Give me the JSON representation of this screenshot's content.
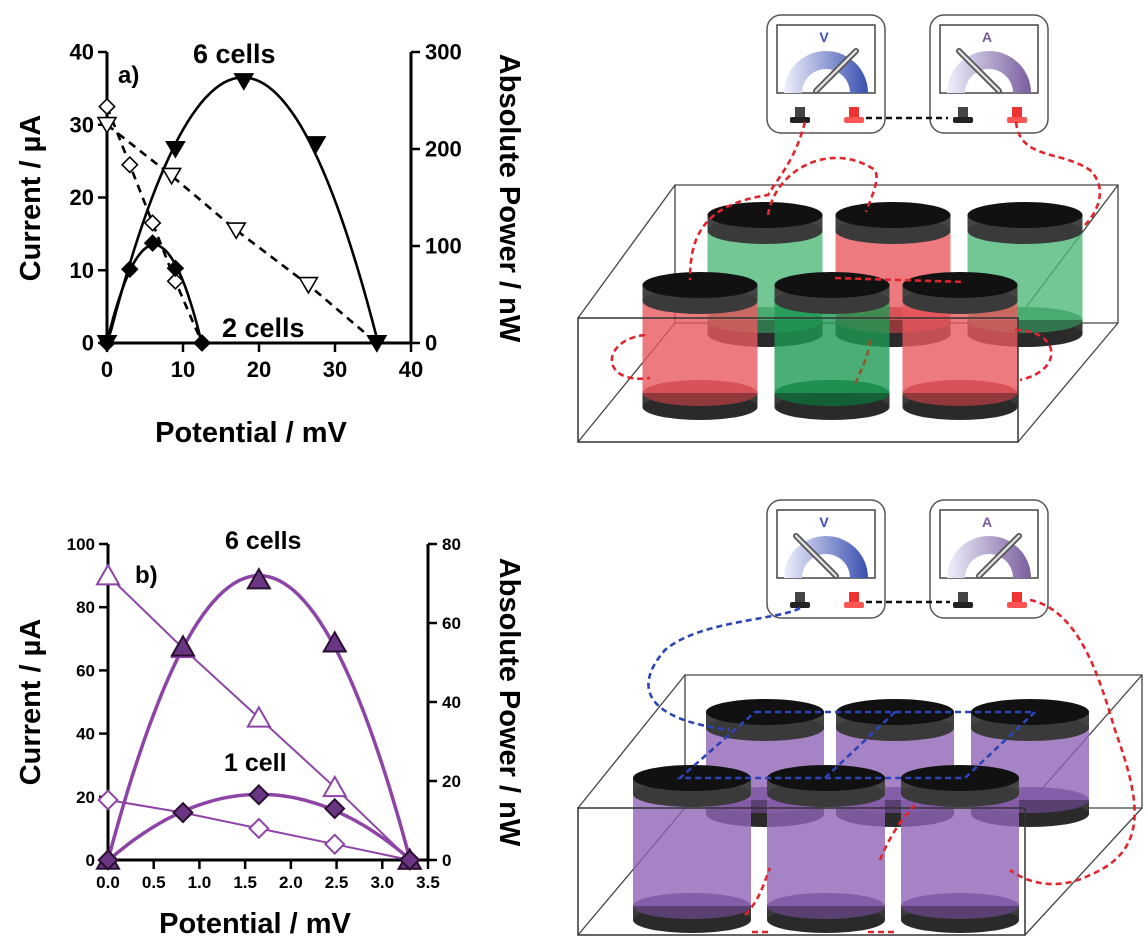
{
  "chart_data": [
    {
      "type": "scatter",
      "panel_label": "a)",
      "xlabel": "Potential / mV",
      "ylabel": "Current / µA",
      "y2label": "Absolute Power / nW",
      "xlim": [
        0,
        40
      ],
      "ylim": [
        0,
        40
      ],
      "y2lim": [
        0,
        300
      ],
      "xticks": [
        "0",
        "10",
        "20",
        "30",
        "40"
      ],
      "yticks": [
        "0",
        "10",
        "20",
        "30",
        "40"
      ],
      "y2ticks": [
        "0",
        "100",
        "200",
        "300"
      ],
      "annotations": [
        "6 cells",
        "2 cells"
      ],
      "colors": {
        "main": "#000000"
      },
      "series": [
        {
          "axis": "left",
          "marker": "open-triangle-down",
          "line": "dashed",
          "x": [
            0,
            8.5,
            17,
            26.5,
            35.5
          ],
          "y": [
            30,
            23,
            15.5,
            8,
            0
          ]
        },
        {
          "axis": "right",
          "marker": "filled-triangle-down",
          "line": "solid-fit",
          "x": [
            0,
            9,
            18,
            27.5,
            35.5
          ],
          "y": [
            0,
            200,
            270,
            205,
            0
          ]
        },
        {
          "axis": "left",
          "marker": "open-diamond",
          "line": "dashed",
          "x": [
            0,
            3,
            6,
            9,
            12.5
          ],
          "y": [
            32.5,
            24.5,
            16.5,
            8.5,
            0
          ]
        },
        {
          "axis": "right",
          "marker": "filled-diamond",
          "line": "solid-fit",
          "x": [
            0,
            3,
            6,
            9,
            12.5
          ],
          "y": [
            0,
            76,
            103,
            77,
            0
          ]
        }
      ]
    },
    {
      "type": "scatter",
      "panel_label": "b)",
      "xlabel": "Potential / mV",
      "ylabel": "Current / µA",
      "y2label": "Absolute Power / nW",
      "xlim": [
        0,
        3.5
      ],
      "ylim": [
        0,
        100
      ],
      "y2lim": [
        0,
        80
      ],
      "xticks": [
        "0.0",
        "0.5",
        "1.0",
        "1.5",
        "2.0",
        "2.5",
        "3.0",
        "3.5"
      ],
      "yticks": [
        "0",
        "20",
        "40",
        "60",
        "80",
        "100"
      ],
      "y2ticks": [
        "0",
        "20",
        "40",
        "60",
        "80"
      ],
      "annotations": [
        "6 cells",
        "1 cell"
      ],
      "colors": {
        "main": "#8e44a6",
        "fill": "#6a3582",
        "stroke": "#2a1030"
      },
      "series": [
        {
          "axis": "left",
          "marker": "open-triangle-up",
          "line": "solid",
          "x": [
            0,
            0.82,
            1.65,
            2.48,
            3.3
          ],
          "y": [
            90,
            67,
            45,
            23,
            0
          ]
        },
        {
          "axis": "right",
          "marker": "filled-triangle-up",
          "line": "solid-fit",
          "x": [
            0,
            0.82,
            1.65,
            2.48,
            3.3
          ],
          "y": [
            0,
            54,
            71,
            55,
            0
          ]
        },
        {
          "axis": "left",
          "marker": "open-diamond",
          "line": "solid",
          "x": [
            0,
            0.82,
            1.65,
            2.48,
            3.3
          ],
          "y": [
            19,
            15,
            10,
            5,
            0
          ]
        },
        {
          "axis": "right",
          "marker": "filled-diamond",
          "line": "solid-fit",
          "x": [
            0,
            0.82,
            1.65,
            2.48,
            3.3
          ],
          "y": [
            0,
            12,
            16.5,
            13,
            0
          ]
        }
      ]
    }
  ],
  "diagrams": [
    {
      "meter_labels": [
        "V",
        "A"
      ],
      "cell_colors": [
        "#4fb97a",
        "#e8595e",
        "#4fb97a",
        "#e8595e",
        "#1e9a55",
        "#e8595e"
      ],
      "wire_colors": [
        "#e0252c",
        "#111111"
      ]
    },
    {
      "meter_labels": [
        "V",
        "A"
      ],
      "cell_colors": [
        "#8f64b5",
        "#8f64b5",
        "#8f64b5",
        "#8f64b5",
        "#8f64b5",
        "#8f64b5"
      ],
      "wire_colors": [
        "#2b45b8",
        "#e0252c",
        "#111111"
      ]
    }
  ]
}
